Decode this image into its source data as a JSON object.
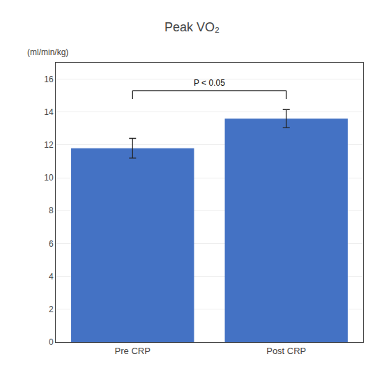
{
  "chart_data": {
    "type": "bar",
    "title": "Peak VO₂",
    "ylabel": "(ml/min/kg)",
    "categories": [
      "Pre CRP",
      "Post CRP"
    ],
    "values": [
      11.8,
      13.6
    ],
    "errors": [
      0.6,
      0.55
    ],
    "color": "#4472C4",
    "ylim": [
      0,
      17
    ],
    "yticks": [
      0,
      2,
      4,
      6,
      8,
      10,
      12,
      14,
      16
    ],
    "grid": true,
    "annotations": [
      {
        "text": "P < 0.05",
        "between": [
          "Pre CRP",
          "Post CRP"
        ],
        "y": 15.3,
        "drop": 0.5
      }
    ]
  }
}
